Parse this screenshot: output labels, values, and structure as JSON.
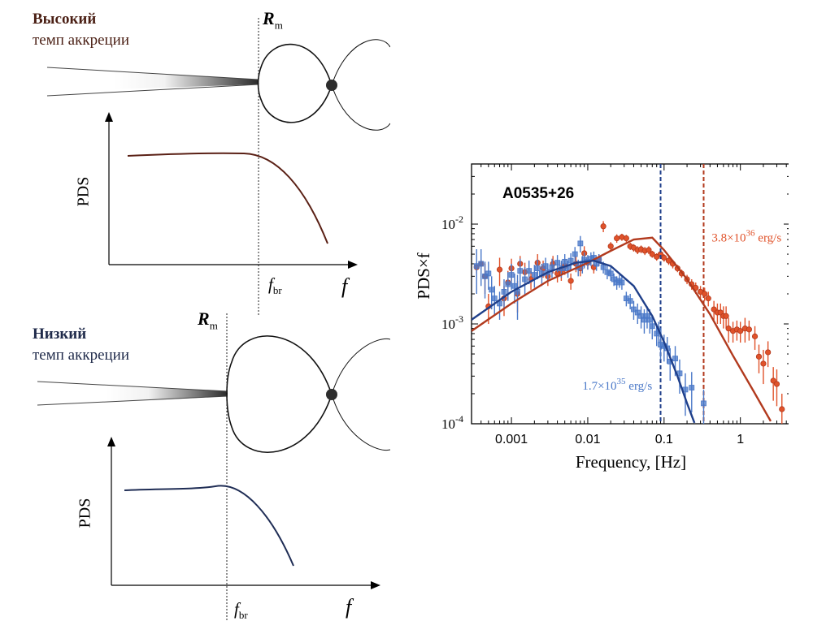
{
  "top_panel": {
    "title_bold": "Высокий",
    "title_sub": "темп аккреции",
    "rm_symbol": "R",
    "rm_sub": "m",
    "ylabel": "PDS",
    "fbr_symbol": "f",
    "fbr_sub": "br",
    "x_symbol": "f",
    "title_color": "#4a1f14",
    "curve_color": "#5a2015"
  },
  "bottom_panel": {
    "title_bold": "Низкий",
    "title_sub": "темп аккреции",
    "rm_symbol": "R",
    "rm_sub": "m",
    "ylabel": "PDS",
    "fbr_symbol": "f",
    "fbr_sub": "br",
    "x_symbol": "f",
    "title_color": "#1f2a4a",
    "curve_color": "#1f2d55"
  },
  "chart_data": {
    "type": "scatter",
    "title": "A0535+26",
    "xlabel": "Frequency, [Hz]",
    "ylabel": "PDS×f",
    "x_scale": "log",
    "y_scale": "log",
    "xlim": [
      0.0003,
      4.5
    ],
    "ylim": [
      0.0001,
      0.04
    ],
    "x_ticks": [
      {
        "value": 0.001,
        "label": "0.001"
      },
      {
        "value": 0.01,
        "label": "0.01"
      },
      {
        "value": 0.1,
        "label": "0.1"
      },
      {
        "value": 1,
        "label": "1"
      }
    ],
    "y_ticks": [
      {
        "value": 0.01,
        "base": "10",
        "exp": "-2"
      },
      {
        "value": 0.001,
        "base": "10",
        "exp": "-3"
      },
      {
        "value": 0.0001,
        "base": "10",
        "exp": "-4"
      }
    ],
    "series": [
      {
        "label_mantissa": "3.8×10",
        "label_exp": "36",
        "label_unit": " erg/s",
        "color": "#e0522a",
        "model_color": "#b23a1e",
        "marker": "circle",
        "break_frequency": 0.33,
        "model": [
          [
            0.0003,
            0.00085
          ],
          [
            0.001,
            0.0016
          ],
          [
            0.003,
            0.0027
          ],
          [
            0.01,
            0.0041
          ],
          [
            0.02,
            0.0054
          ],
          [
            0.04,
            0.007
          ],
          [
            0.07,
            0.0073
          ],
          [
            0.1,
            0.0055
          ],
          [
            0.2,
            0.0028
          ],
          [
            0.4,
            0.00125
          ],
          [
            0.8,
            0.00048
          ],
          [
            1.5,
            0.00021
          ],
          [
            2.5,
            0.000106
          ]
        ],
        "points": [
          [
            0.00035,
            0.0037,
            0.0005
          ],
          [
            0.0004,
            0.004,
            0.0004
          ],
          [
            0.00045,
            0.003,
            0.001
          ],
          [
            0.0005,
            0.0015,
            0.0005
          ],
          [
            0.0007,
            0.0035,
            0.0011
          ],
          [
            0.0008,
            0.0018,
            0.0006
          ],
          [
            0.0009,
            0.0026,
            0.0008
          ],
          [
            0.001,
            0.0036,
            0.0009
          ],
          [
            0.0012,
            0.002,
            0.0007
          ],
          [
            0.0013,
            0.004,
            0.0008
          ],
          [
            0.0015,
            0.0033,
            0.0008
          ],
          [
            0.0018,
            0.0028,
            0.0006
          ],
          [
            0.0022,
            0.0041,
            0.0009
          ],
          [
            0.0026,
            0.0036,
            0.0007
          ],
          [
            0.003,
            0.003,
            0.0006
          ],
          [
            0.0035,
            0.004,
            0.0008
          ],
          [
            0.004,
            0.0032,
            0.0006
          ],
          [
            0.0045,
            0.0034,
            0.0007
          ],
          [
            0.005,
            0.0038,
            0.0007
          ],
          [
            0.006,
            0.0027,
            0.0005
          ],
          [
            0.007,
            0.004,
            0.0007
          ],
          [
            0.008,
            0.0036,
            0.0006
          ],
          [
            0.009,
            0.0051,
            0.0009
          ],
          [
            0.01,
            0.0041,
            0.0006
          ],
          [
            0.012,
            0.0037,
            0.0005
          ],
          [
            0.014,
            0.0044,
            0.0006
          ],
          [
            0.016,
            0.0095,
            0.0012
          ],
          [
            0.02,
            0.006,
            0.0006
          ],
          [
            0.024,
            0.0072,
            0.0007
          ],
          [
            0.028,
            0.0074,
            0.0006
          ],
          [
            0.032,
            0.0072,
            0.0006
          ],
          [
            0.036,
            0.006,
            0.0005
          ],
          [
            0.04,
            0.0058,
            0.0005
          ],
          [
            0.045,
            0.0055,
            0.0005
          ],
          [
            0.05,
            0.0056,
            0.0005
          ],
          [
            0.056,
            0.0054,
            0.0005
          ],
          [
            0.063,
            0.0055,
            0.0005
          ],
          [
            0.07,
            0.005,
            0.0004
          ],
          [
            0.08,
            0.0047,
            0.0004
          ],
          [
            0.09,
            0.005,
            0.0004
          ],
          [
            0.1,
            0.0046,
            0.0004
          ],
          [
            0.115,
            0.0043,
            0.0004
          ],
          [
            0.13,
            0.004,
            0.0004
          ],
          [
            0.15,
            0.0036,
            0.0003
          ],
          [
            0.17,
            0.0032,
            0.0003
          ],
          [
            0.2,
            0.0028,
            0.0003
          ],
          [
            0.23,
            0.0025,
            0.0003
          ],
          [
            0.26,
            0.0023,
            0.0003
          ],
          [
            0.3,
            0.0021,
            0.0003
          ],
          [
            0.34,
            0.002,
            0.0003
          ],
          [
            0.38,
            0.0018,
            0.0003
          ],
          [
            0.45,
            0.0014,
            0.0003
          ],
          [
            0.5,
            0.0013,
            0.0003
          ],
          [
            0.55,
            0.0013,
            0.0003
          ],
          [
            0.6,
            0.0012,
            0.0003
          ],
          [
            0.65,
            0.0012,
            0.0003
          ],
          [
            0.7,
            0.0009,
            0.00025
          ],
          [
            0.8,
            0.00085,
            0.0002
          ],
          [
            0.9,
            0.00088,
            0.0002
          ],
          [
            1.0,
            0.00085,
            0.0002
          ],
          [
            1.15,
            0.0009,
            0.00025
          ],
          [
            1.3,
            0.00088,
            0.0002
          ],
          [
            1.55,
            0.00075,
            0.0002
          ],
          [
            1.75,
            0.00047,
            0.00015
          ],
          [
            2.0,
            0.0004,
            0.00015
          ],
          [
            2.3,
            0.00052,
            0.00015
          ],
          [
            2.7,
            0.00027,
            0.0001
          ],
          [
            3.0,
            0.00025,
            0.0001
          ],
          [
            3.5,
            0.00014,
            6e-05
          ]
        ]
      },
      {
        "label_mantissa": "1.7×10",
        "label_exp": "35",
        "label_unit": " erg/s",
        "color": "#4a78c8",
        "model_color": "#1f3f8a",
        "marker": "square",
        "break_frequency": 0.09,
        "model": [
          [
            0.0003,
            0.0011
          ],
          [
            0.001,
            0.0021
          ],
          [
            0.003,
            0.0033
          ],
          [
            0.007,
            0.0041
          ],
          [
            0.012,
            0.0043
          ],
          [
            0.02,
            0.0038
          ],
          [
            0.04,
            0.0024
          ],
          [
            0.07,
            0.0012
          ],
          [
            0.1,
            0.00066
          ],
          [
            0.15,
            0.0003
          ],
          [
            0.2,
            0.00016
          ],
          [
            0.25,
            0.000102
          ]
        ],
        "points": [
          [
            0.00035,
            0.0038,
            0.0018
          ],
          [
            0.0004,
            0.004,
            0.0016
          ],
          [
            0.00045,
            0.003,
            0.0012
          ],
          [
            0.0005,
            0.0032,
            0.001
          ],
          [
            0.00055,
            0.0022,
            0.0008
          ],
          [
            0.0006,
            0.0018,
            0.0006
          ],
          [
            0.0007,
            0.0016,
            0.0005
          ],
          [
            0.0008,
            0.0021,
            0.0007
          ],
          [
            0.0009,
            0.0025,
            0.0008
          ],
          [
            0.001,
            0.0031,
            0.0009
          ],
          [
            0.0011,
            0.0024,
            0.0008
          ],
          [
            0.0012,
            0.0021,
            0.001
          ],
          [
            0.0013,
            0.0034,
            0.0011
          ],
          [
            0.0015,
            0.0028,
            0.0009
          ],
          [
            0.0017,
            0.0034,
            0.0009
          ],
          [
            0.002,
            0.0031,
            0.0008
          ],
          [
            0.0022,
            0.0036,
            0.0008
          ],
          [
            0.0025,
            0.0032,
            0.0008
          ],
          [
            0.0028,
            0.0038,
            0.0008
          ],
          [
            0.003,
            0.0033,
            0.0007
          ],
          [
            0.0034,
            0.0037,
            0.0008
          ],
          [
            0.004,
            0.0041,
            0.0008
          ],
          [
            0.0045,
            0.0036,
            0.0007
          ],
          [
            0.005,
            0.0042,
            0.0008
          ],
          [
            0.0055,
            0.0036,
            0.0007
          ],
          [
            0.006,
            0.0043,
            0.0008
          ],
          [
            0.0068,
            0.005,
            0.0009
          ],
          [
            0.0075,
            0.0037,
            0.0007
          ],
          [
            0.008,
            0.0064,
            0.0012
          ],
          [
            0.0085,
            0.004,
            0.0008
          ],
          [
            0.009,
            0.0044,
            0.0008
          ],
          [
            0.01,
            0.0042,
            0.0007
          ],
          [
            0.011,
            0.0045,
            0.0007
          ],
          [
            0.012,
            0.0046,
            0.0007
          ],
          [
            0.013,
            0.004,
            0.0006
          ],
          [
            0.014,
            0.0044,
            0.0006
          ],
          [
            0.016,
            0.0037,
            0.0005
          ],
          [
            0.018,
            0.0033,
            0.0005
          ],
          [
            0.02,
            0.0032,
            0.0005
          ],
          [
            0.022,
            0.0028,
            0.0004
          ],
          [
            0.024,
            0.0026,
            0.0004
          ],
          [
            0.026,
            0.0027,
            0.0004
          ],
          [
            0.028,
            0.0026,
            0.0004
          ],
          [
            0.032,
            0.0018,
            0.0003
          ],
          [
            0.036,
            0.0017,
            0.0003
          ],
          [
            0.04,
            0.0014,
            0.0003
          ],
          [
            0.045,
            0.0013,
            0.0003
          ],
          [
            0.05,
            0.0012,
            0.0003
          ],
          [
            0.055,
            0.0011,
            0.0003
          ],
          [
            0.06,
            0.0012,
            0.0003
          ],
          [
            0.065,
            0.0011,
            0.0003
          ],
          [
            0.07,
            0.00095,
            0.00025
          ],
          [
            0.08,
            0.0008,
            0.0002
          ],
          [
            0.085,
            0.00085,
            0.0002
          ],
          [
            0.09,
            0.00062,
            0.00018
          ],
          [
            0.1,
            0.0006,
            0.00018
          ],
          [
            0.11,
            0.00057,
            0.00017
          ],
          [
            0.12,
            0.00042,
            0.00015
          ],
          [
            0.14,
            0.00045,
            0.00015
          ],
          [
            0.16,
            0.00032,
            0.00012
          ],
          [
            0.19,
            0.00022,
            0.0001
          ],
          [
            0.23,
            0.00023,
            0.0001
          ],
          [
            0.33,
            0.00016,
            6e-05
          ]
        ]
      }
    ]
  }
}
